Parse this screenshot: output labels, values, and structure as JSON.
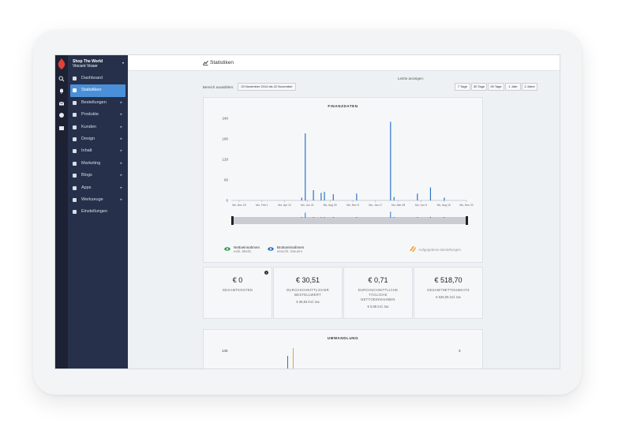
{
  "shop": {
    "name": "Shop The World",
    "user": "Vincent Visser",
    "caret": "▾"
  },
  "sidebar": {
    "items": [
      {
        "label": "Dashboard",
        "chevron": ""
      },
      {
        "label": "Statistiken",
        "chevron": ""
      },
      {
        "label": "Bestellungen",
        "chevron": "▸"
      },
      {
        "label": "Produkte",
        "chevron": "▸"
      },
      {
        "label": "Kunden",
        "chevron": "▸"
      },
      {
        "label": "Design",
        "chevron": "▸"
      },
      {
        "label": "Inhalt",
        "chevron": "▸"
      },
      {
        "label": "Marketing",
        "chevron": "▸"
      },
      {
        "label": "Blogs",
        "chevron": "▸"
      },
      {
        "label": "Apps",
        "chevron": "▸"
      },
      {
        "label": "Werkzeuge",
        "chevron": "▸"
      },
      {
        "label": "Einstellungen",
        "chevron": ""
      }
    ],
    "active_index": 1
  },
  "rail_icons": [
    "search-icon",
    "bell-icon",
    "mail-icon",
    "help-icon",
    "store-icon"
  ],
  "header": {
    "title": "Statistiken"
  },
  "filters": {
    "range_label": "Bereich auswählen:",
    "range_value": "23 November 2014 bis 22 November",
    "last_label": "Letzte anzeigen:",
    "periods": [
      "7 Tage",
      "30 Tage",
      "90 Tage",
      "1 Jahr",
      "2 Jahre"
    ]
  },
  "colors": {
    "accent": "#4a90d9",
    "net": "#2e9e4a",
    "gross": "#2b73c8",
    "cancelled": "#f0a030",
    "sidebar": "#26304a"
  },
  "legend": [
    {
      "label": "Nettoeinnahmen",
      "sub": "exkl. MwSt."
    },
    {
      "label": "Bruttoeinnahmen",
      "sub": "einschl. Steuern"
    },
    {
      "label": "Aufgegebene Bestellungen",
      "sub": ""
    }
  ],
  "kpis": [
    {
      "value": "€ 0",
      "label": "GESAMTKOSTEN",
      "sub": "",
      "info": "i"
    },
    {
      "value": "€ 30,51",
      "label": "DURCHSCHNITTLICHER BESTELLWERT",
      "sub": "€ 36,83 incl. tax"
    },
    {
      "value": "€ 0,71",
      "label": "DURCHSCHNITTLICHE TÄGLICHE NETTOEINNAHMEN",
      "sub": "€ 0,86 incl. tax"
    },
    {
      "value": "€ 518,70",
      "label": "GESAMTNETTOUMSATZ",
      "sub": "€ 626,05 incl. tax"
    }
  ],
  "chart_data": [
    {
      "type": "bar",
      "title": "FINANZDATEN",
      "x_ticks": [
        "Mo, Nov 23",
        "Mo, Feb 1",
        "Mo, Apr 12",
        "Mo, Jun 21",
        "Mo, Aug 30",
        "Mo, Nov 8",
        "Mo, Jan 17",
        "Mo, Mar 28",
        "Mo, Jun 6",
        "Mo, Aug 15",
        "Mo, Nov 22"
      ],
      "yticks": [
        0,
        60,
        120,
        180,
        240
      ],
      "ylim": [
        0,
        240
      ],
      "series": [
        {
          "name": "Bruttoeinnahmen",
          "points": [
            {
              "x": 0.295,
              "y": 8
            },
            {
              "x": 0.31,
              "y": 196
            },
            {
              "x": 0.345,
              "y": 30
            },
            {
              "x": 0.378,
              "y": 22
            },
            {
              "x": 0.392,
              "y": 25
            },
            {
              "x": 0.43,
              "y": 18
            },
            {
              "x": 0.53,
              "y": 20
            },
            {
              "x": 0.675,
              "y": 230
            },
            {
              "x": 0.69,
              "y": 10
            },
            {
              "x": 0.79,
              "y": 20
            },
            {
              "x": 0.846,
              "y": 38
            },
            {
              "x": 0.905,
              "y": 8
            }
          ]
        }
      ]
    },
    {
      "type": "bar",
      "title": "UMWANDLUNG",
      "yticks_left": [
        140
      ],
      "yticks_right": [
        3
      ],
      "series": []
    }
  ]
}
